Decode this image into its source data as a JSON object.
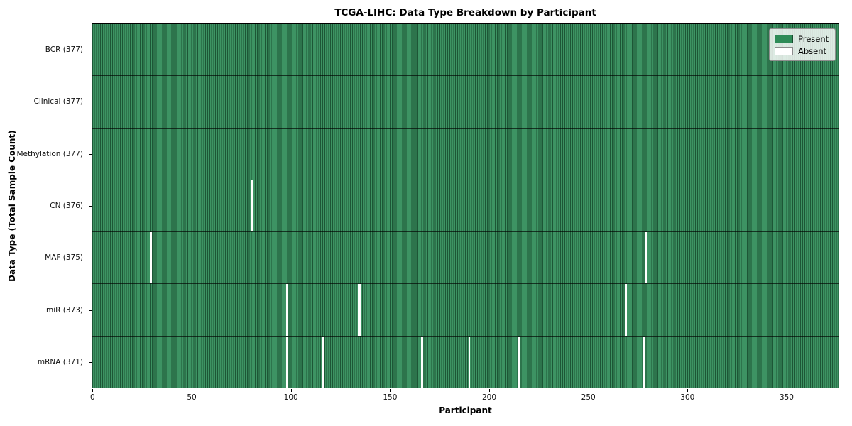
{
  "title": "TCGA-LIHC: Data Type Breakdown by Participant",
  "axes": {
    "xlabel": "Participant",
    "ylabel": "Data Type (Total Sample Count)"
  },
  "legend": {
    "present_label": "Present",
    "absent_label": "Absent"
  },
  "colors": {
    "present": "#2e8b57",
    "absent": "#ffffff"
  },
  "chart_data": {
    "type": "heatmap",
    "title": "TCGA-LIHC: Data Type Breakdown by Participant",
    "xlabel": "Participant",
    "ylabel": "Data Type (Total Sample Count)",
    "n_participants": 377,
    "x_ticks": [
      0,
      50,
      100,
      150,
      200,
      250,
      300,
      350
    ],
    "grid": false,
    "legend_position": "upper right",
    "legend": [
      {
        "label": "Present",
        "color": "#2e8b57"
      },
      {
        "label": "Absent",
        "color": "#ffffff"
      }
    ],
    "rows": [
      {
        "label": "BCR (377)",
        "data_type": "BCR",
        "present_count": 377,
        "absent_participants": []
      },
      {
        "label": "Clinical (377)",
        "data_type": "Clinical",
        "present_count": 377,
        "absent_participants": []
      },
      {
        "label": "Methylation (377)",
        "data_type": "Methylation",
        "present_count": 377,
        "absent_participants": []
      },
      {
        "label": "CN (376)",
        "data_type": "CN",
        "present_count": 376,
        "absent_participants": [
          80
        ]
      },
      {
        "label": "MAF (375)",
        "data_type": "MAF",
        "present_count": 375,
        "absent_participants": [
          29,
          279
        ]
      },
      {
        "label": "miR (373)",
        "data_type": "miR",
        "present_count": 373,
        "absent_participants": [
          98,
          134,
          135,
          269
        ]
      },
      {
        "label": "mRNA (371)",
        "data_type": "mRNA",
        "present_count": 371,
        "absent_participants": [
          98,
          116,
          166,
          190,
          215,
          278
        ]
      }
    ]
  }
}
